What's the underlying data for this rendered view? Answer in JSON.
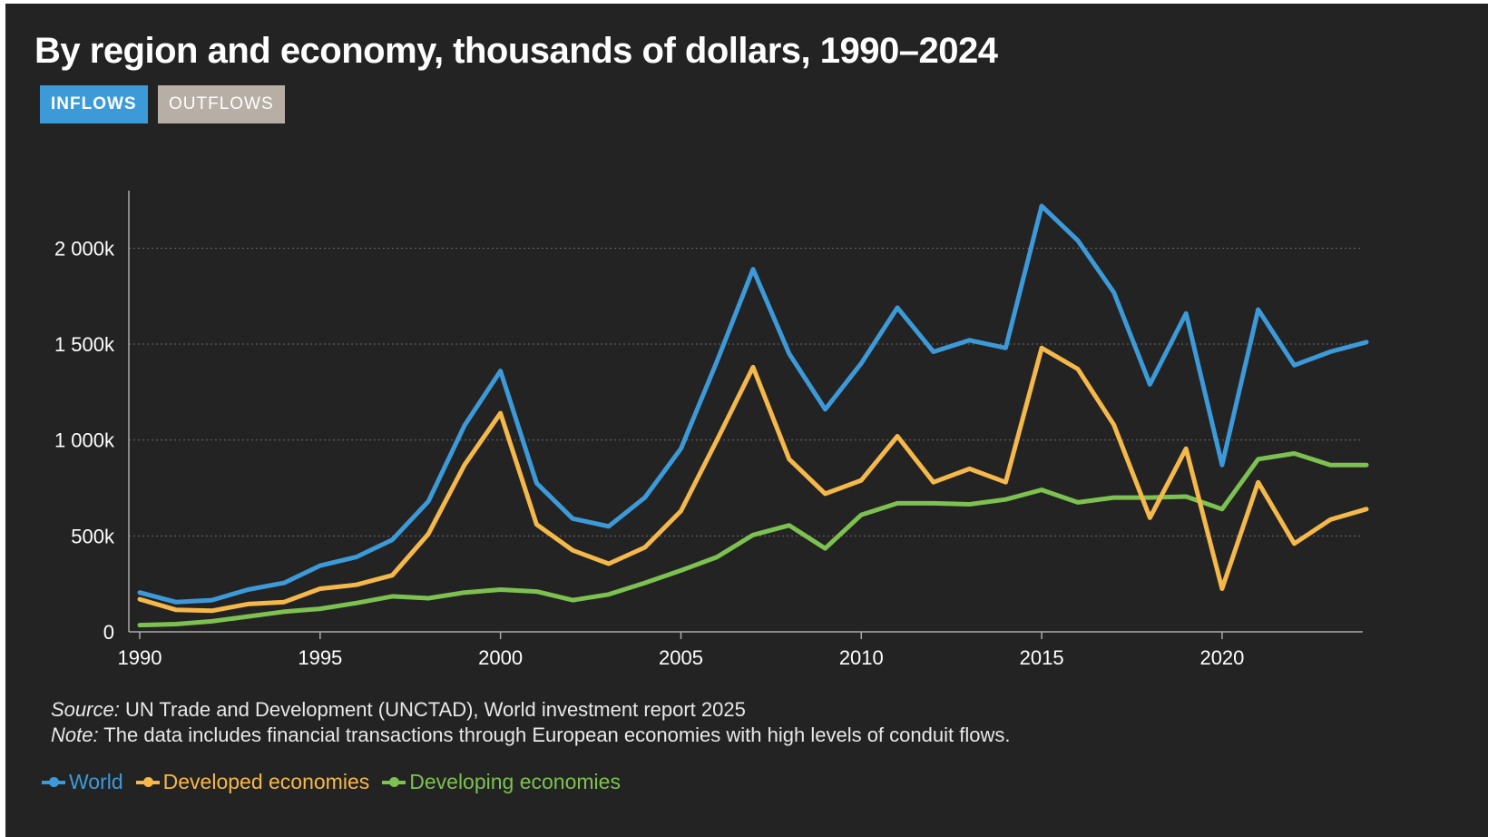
{
  "header": {
    "title": "By region and economy, thousands of dollars, 1990–2024",
    "tabs": [
      {
        "label": "INFLOWS",
        "active": true
      },
      {
        "label": "OUTFLOWS",
        "active": false
      }
    ]
  },
  "notes": {
    "source_label": "Source:",
    "source_text": " UN Trade and Development (UNCTAD), World investment report 2025",
    "note_label": "Note:",
    "note_text": " The data includes financial transactions through European economies with high levels of conduit flows."
  },
  "colors": {
    "world": "#3d9ad9",
    "developed": "#f5b84a",
    "developing": "#7dc151",
    "axis": "#aaaaaa",
    "grid": "#6a6a6a",
    "text": "#ffffff"
  },
  "chart_data": {
    "type": "line",
    "x": [
      1990,
      1991,
      1992,
      1993,
      1994,
      1995,
      1996,
      1997,
      1998,
      1999,
      2000,
      2001,
      2002,
      2003,
      2004,
      2005,
      2006,
      2007,
      2008,
      2009,
      2010,
      2011,
      2012,
      2013,
      2014,
      2015,
      2016,
      2017,
      2018,
      2019,
      2020,
      2021,
      2022,
      2023,
      2024
    ],
    "xlim": [
      1990,
      2024
    ],
    "xticks": [
      1990,
      1995,
      2000,
      2005,
      2010,
      2015,
      2020
    ],
    "ylim": [
      0,
      2300000
    ],
    "yticks": [
      0,
      500000,
      1000000,
      1500000,
      2000000
    ],
    "ytick_labels": [
      "0",
      "500k",
      "1 000k",
      "1 500k",
      "2 000k"
    ],
    "grid": true,
    "legend_position": "bottom-left",
    "series": [
      {
        "name": "World",
        "key": "world",
        "values": [
          205000,
          155000,
          165000,
          220000,
          255000,
          345000,
          390000,
          480000,
          680000,
          1075000,
          1360000,
          775000,
          590000,
          550000,
          700000,
          955000,
          1410000,
          1890000,
          1450000,
          1160000,
          1400000,
          1690000,
          1460000,
          1520000,
          1480000,
          2220000,
          2040000,
          1770000,
          1290000,
          1660000,
          870000,
          1680000,
          1390000,
          1460000,
          1510000
        ]
      },
      {
        "name": "Developed economies",
        "key": "developed",
        "values": [
          170000,
          115000,
          110000,
          145000,
          155000,
          225000,
          245000,
          295000,
          510000,
          870000,
          1140000,
          560000,
          425000,
          355000,
          440000,
          630000,
          1000000,
          1380000,
          900000,
          720000,
          790000,
          1020000,
          780000,
          850000,
          780000,
          1480000,
          1370000,
          1080000,
          595000,
          955000,
          225000,
          780000,
          460000,
          585000,
          640000
        ]
      },
      {
        "name": "Developing economies",
        "key": "developing",
        "values": [
          35000,
          40000,
          55000,
          80000,
          105000,
          120000,
          150000,
          185000,
          175000,
          205000,
          220000,
          210000,
          165000,
          195000,
          255000,
          320000,
          390000,
          505000,
          555000,
          435000,
          610000,
          670000,
          670000,
          665000,
          690000,
          740000,
          675000,
          700000,
          700000,
          705000,
          640000,
          900000,
          930000,
          870000,
          870000
        ]
      }
    ]
  }
}
